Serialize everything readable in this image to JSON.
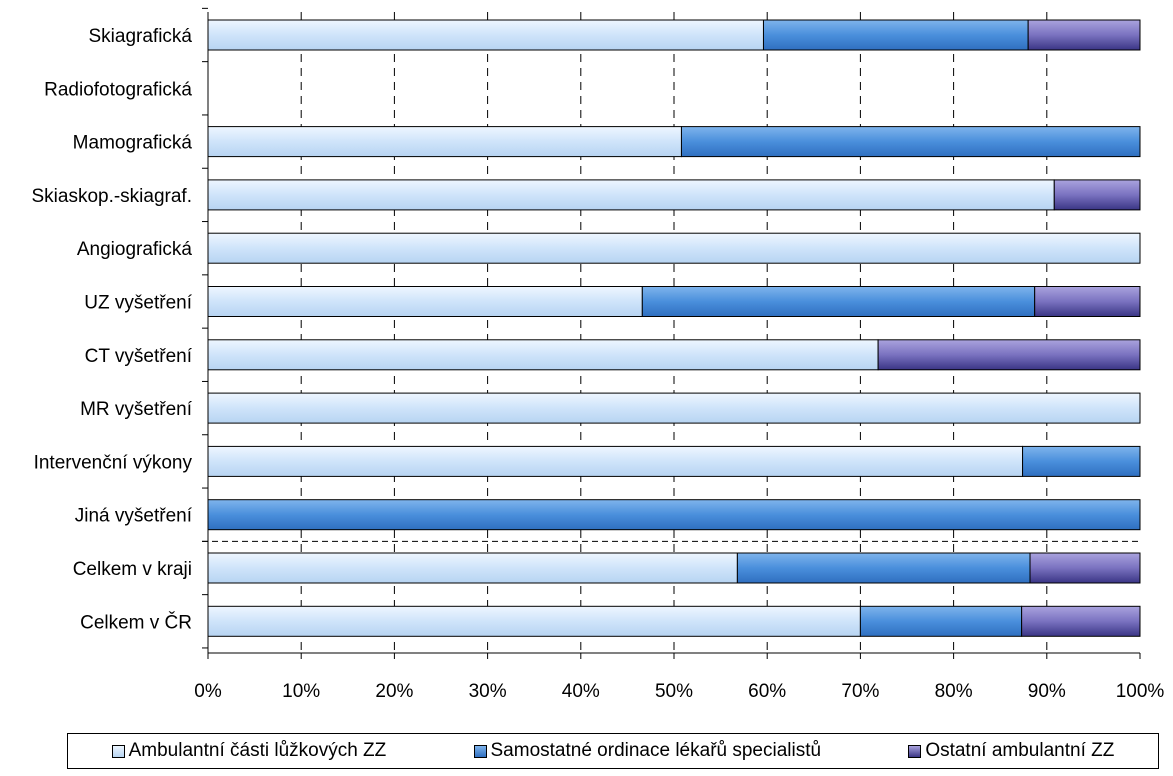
{
  "chart_data": {
    "type": "bar",
    "orientation": "horizontal",
    "stacked": "percent",
    "categories": [
      "Skiagrafická",
      "Radiofotografická",
      "Mamografická",
      "Skiaskop.-skiagraf.",
      "Angiografická",
      "UZ vyšetření",
      "CT vyšetření",
      "MR vyšetření",
      "Intervenční výkony",
      "Jiná vyšetření",
      "Celkem v kraji",
      "Celkem v ČR"
    ],
    "series": [
      {
        "name": "Ambulantní části lůžkových ZZ",
        "color": "#cfe4fa",
        "values": [
          59.6,
          0,
          50.8,
          90.8,
          100,
          46.6,
          71.9,
          100,
          87.4,
          0,
          56.8,
          70.0
        ]
      },
      {
        "name": "Samostatné ordinace lékařů specialistů",
        "color": "#4a8fdc",
        "values": [
          28.4,
          0,
          49.2,
          0,
          0,
          42.1,
          0,
          0,
          12.6,
          100,
          31.4,
          17.3
        ]
      },
      {
        "name": "Ostatní ambulantní ZZ",
        "color": "#7a72c0",
        "values": [
          12.0,
          0,
          0,
          9.2,
          0,
          11.3,
          28.1,
          0,
          0,
          0,
          11.8,
          12.7
        ]
      }
    ],
    "xlim": [
      0,
      100
    ],
    "ticks": [
      "0%",
      "10%",
      "20%",
      "30%",
      "40%",
      "50%",
      "60%",
      "70%",
      "80%",
      "90%",
      "100%"
    ],
    "grid": "vertical dashed",
    "legend_position": "bottom"
  }
}
